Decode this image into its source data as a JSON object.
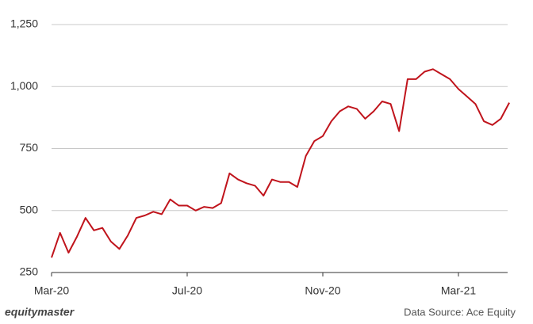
{
  "chart_data": {
    "type": "line",
    "categories": [
      "Mar-20",
      null,
      null,
      null,
      null,
      null,
      null,
      null,
      null,
      null,
      null,
      null,
      null,
      null,
      null,
      null,
      "Jul-20",
      null,
      null,
      null,
      null,
      null,
      null,
      null,
      null,
      null,
      null,
      null,
      null,
      null,
      null,
      null,
      "Nov-20",
      null,
      null,
      null,
      null,
      null,
      null,
      null,
      null,
      null,
      null,
      null,
      null,
      null,
      null,
      null,
      "Mar-21",
      null,
      null,
      null,
      null,
      null,
      null
    ],
    "series": [
      {
        "color": "#c0141c",
        "values": [
          310,
          410,
          330,
          395,
          470,
          420,
          430,
          375,
          345,
          400,
          470,
          480,
          495,
          485,
          545,
          520,
          520,
          500,
          515,
          510,
          530,
          650,
          625,
          610,
          600,
          560,
          625,
          615,
          615,
          595,
          720,
          780,
          800,
          860,
          900,
          920,
          910,
          870,
          900,
          940,
          930,
          820,
          1030,
          1030,
          1060,
          1070,
          1050,
          1030,
          990,
          960,
          930,
          860,
          845,
          870,
          935
        ]
      }
    ],
    "ylim": [
      250,
      1250
    ],
    "yticks": [
      {
        "value": 250,
        "label": "250"
      },
      500,
      750,
      {
        "value": 1000,
        "label": "1,000"
      },
      {
        "value": 1250,
        "label": "1,250"
      }
    ],
    "grid": true,
    "footer_left": "equitymaster",
    "footer_right": "Data Source: Ace Equity"
  }
}
